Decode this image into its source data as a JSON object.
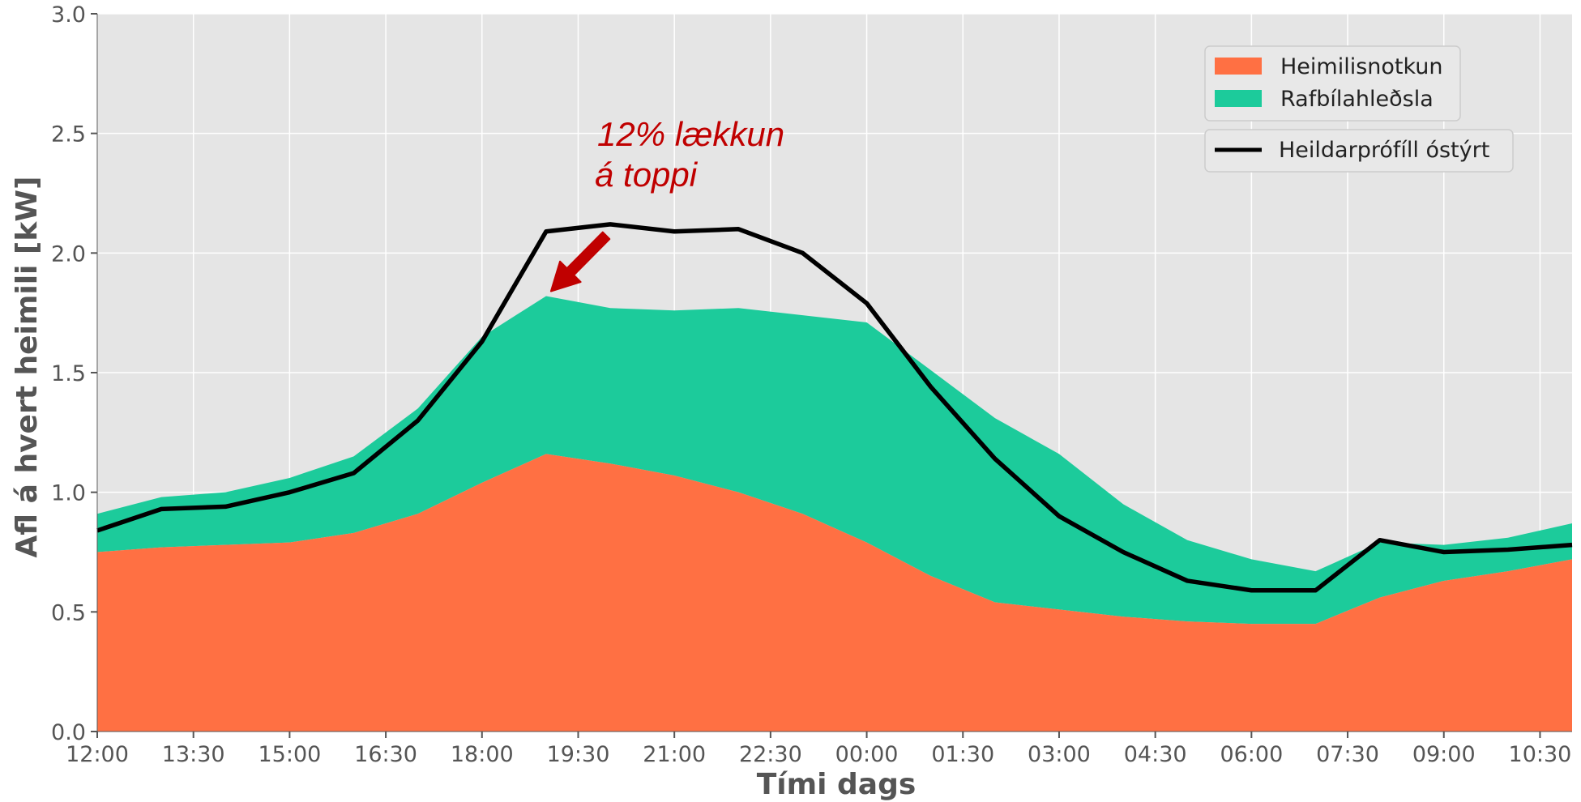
{
  "chart_data": {
    "type": "area",
    "title": "",
    "xlabel": "Tími dags",
    "ylabel": "Afl á hvert heimili [kW]",
    "ylim": [
      0,
      3.0
    ],
    "yticks": [
      "0.0",
      "0.5",
      "1.0",
      "1.5",
      "2.0",
      "2.5",
      "3.0"
    ],
    "xtick_labels": [
      "12:00",
      "13:30",
      "15:00",
      "16:30",
      "18:00",
      "19:30",
      "21:00",
      "22:30",
      "00:00",
      "01:30",
      "03:00",
      "04:30",
      "06:00",
      "07:30",
      "09:00",
      "10:30"
    ],
    "x": [
      "12:00",
      "13:00",
      "14:00",
      "15:00",
      "16:00",
      "17:00",
      "18:00",
      "19:00",
      "20:00",
      "21:00",
      "22:00",
      "23:00",
      "00:00",
      "01:00",
      "02:00",
      "03:00",
      "04:00",
      "05:00",
      "06:00",
      "07:00",
      "08:00",
      "09:00",
      "10:00",
      "11:00"
    ],
    "grid": true,
    "legend_position": "top-right",
    "series": [
      {
        "name": "Heimilisnotkun",
        "kind": "stacked-area",
        "color": "#ff7043",
        "values": [
          0.75,
          0.77,
          0.78,
          0.79,
          0.83,
          0.91,
          1.04,
          1.16,
          1.12,
          1.07,
          1.0,
          0.91,
          0.79,
          0.65,
          0.54,
          0.51,
          0.48,
          0.46,
          0.45,
          0.45,
          0.56,
          0.63,
          0.67,
          0.72
        ]
      },
      {
        "name": "Rafbílahleðsla",
        "kind": "stacked-area",
        "color": "#1ccb9b",
        "values": [
          0.16,
          0.21,
          0.22,
          0.27,
          0.32,
          0.44,
          0.61,
          0.66,
          0.65,
          0.69,
          0.77,
          0.83,
          0.92,
          0.86,
          0.77,
          0.65,
          0.47,
          0.34,
          0.27,
          0.22,
          0.23,
          0.15,
          0.14,
          0.15
        ]
      },
      {
        "name": "Heildarprófíll óstýrt",
        "kind": "line",
        "color": "#000000",
        "values": [
          0.84,
          0.93,
          0.94,
          1.0,
          1.08,
          1.3,
          1.63,
          2.09,
          2.12,
          2.09,
          2.1,
          2.0,
          1.79,
          1.44,
          1.14,
          0.9,
          0.75,
          0.63,
          0.59,
          0.59,
          0.8,
          0.75,
          0.76,
          0.78
        ]
      }
    ],
    "annotation": {
      "lines": [
        "12% lækkun",
        "á toppi"
      ],
      "color": "#c00000",
      "arrow_color": "#c00000",
      "arrow_from": [
        "20:00",
        2.1
      ],
      "arrow_to": [
        "19:00",
        1.83
      ]
    }
  },
  "colors": {
    "plot_background": "#e5e5e5",
    "grid": "#ffffff",
    "text": "#555555"
  }
}
